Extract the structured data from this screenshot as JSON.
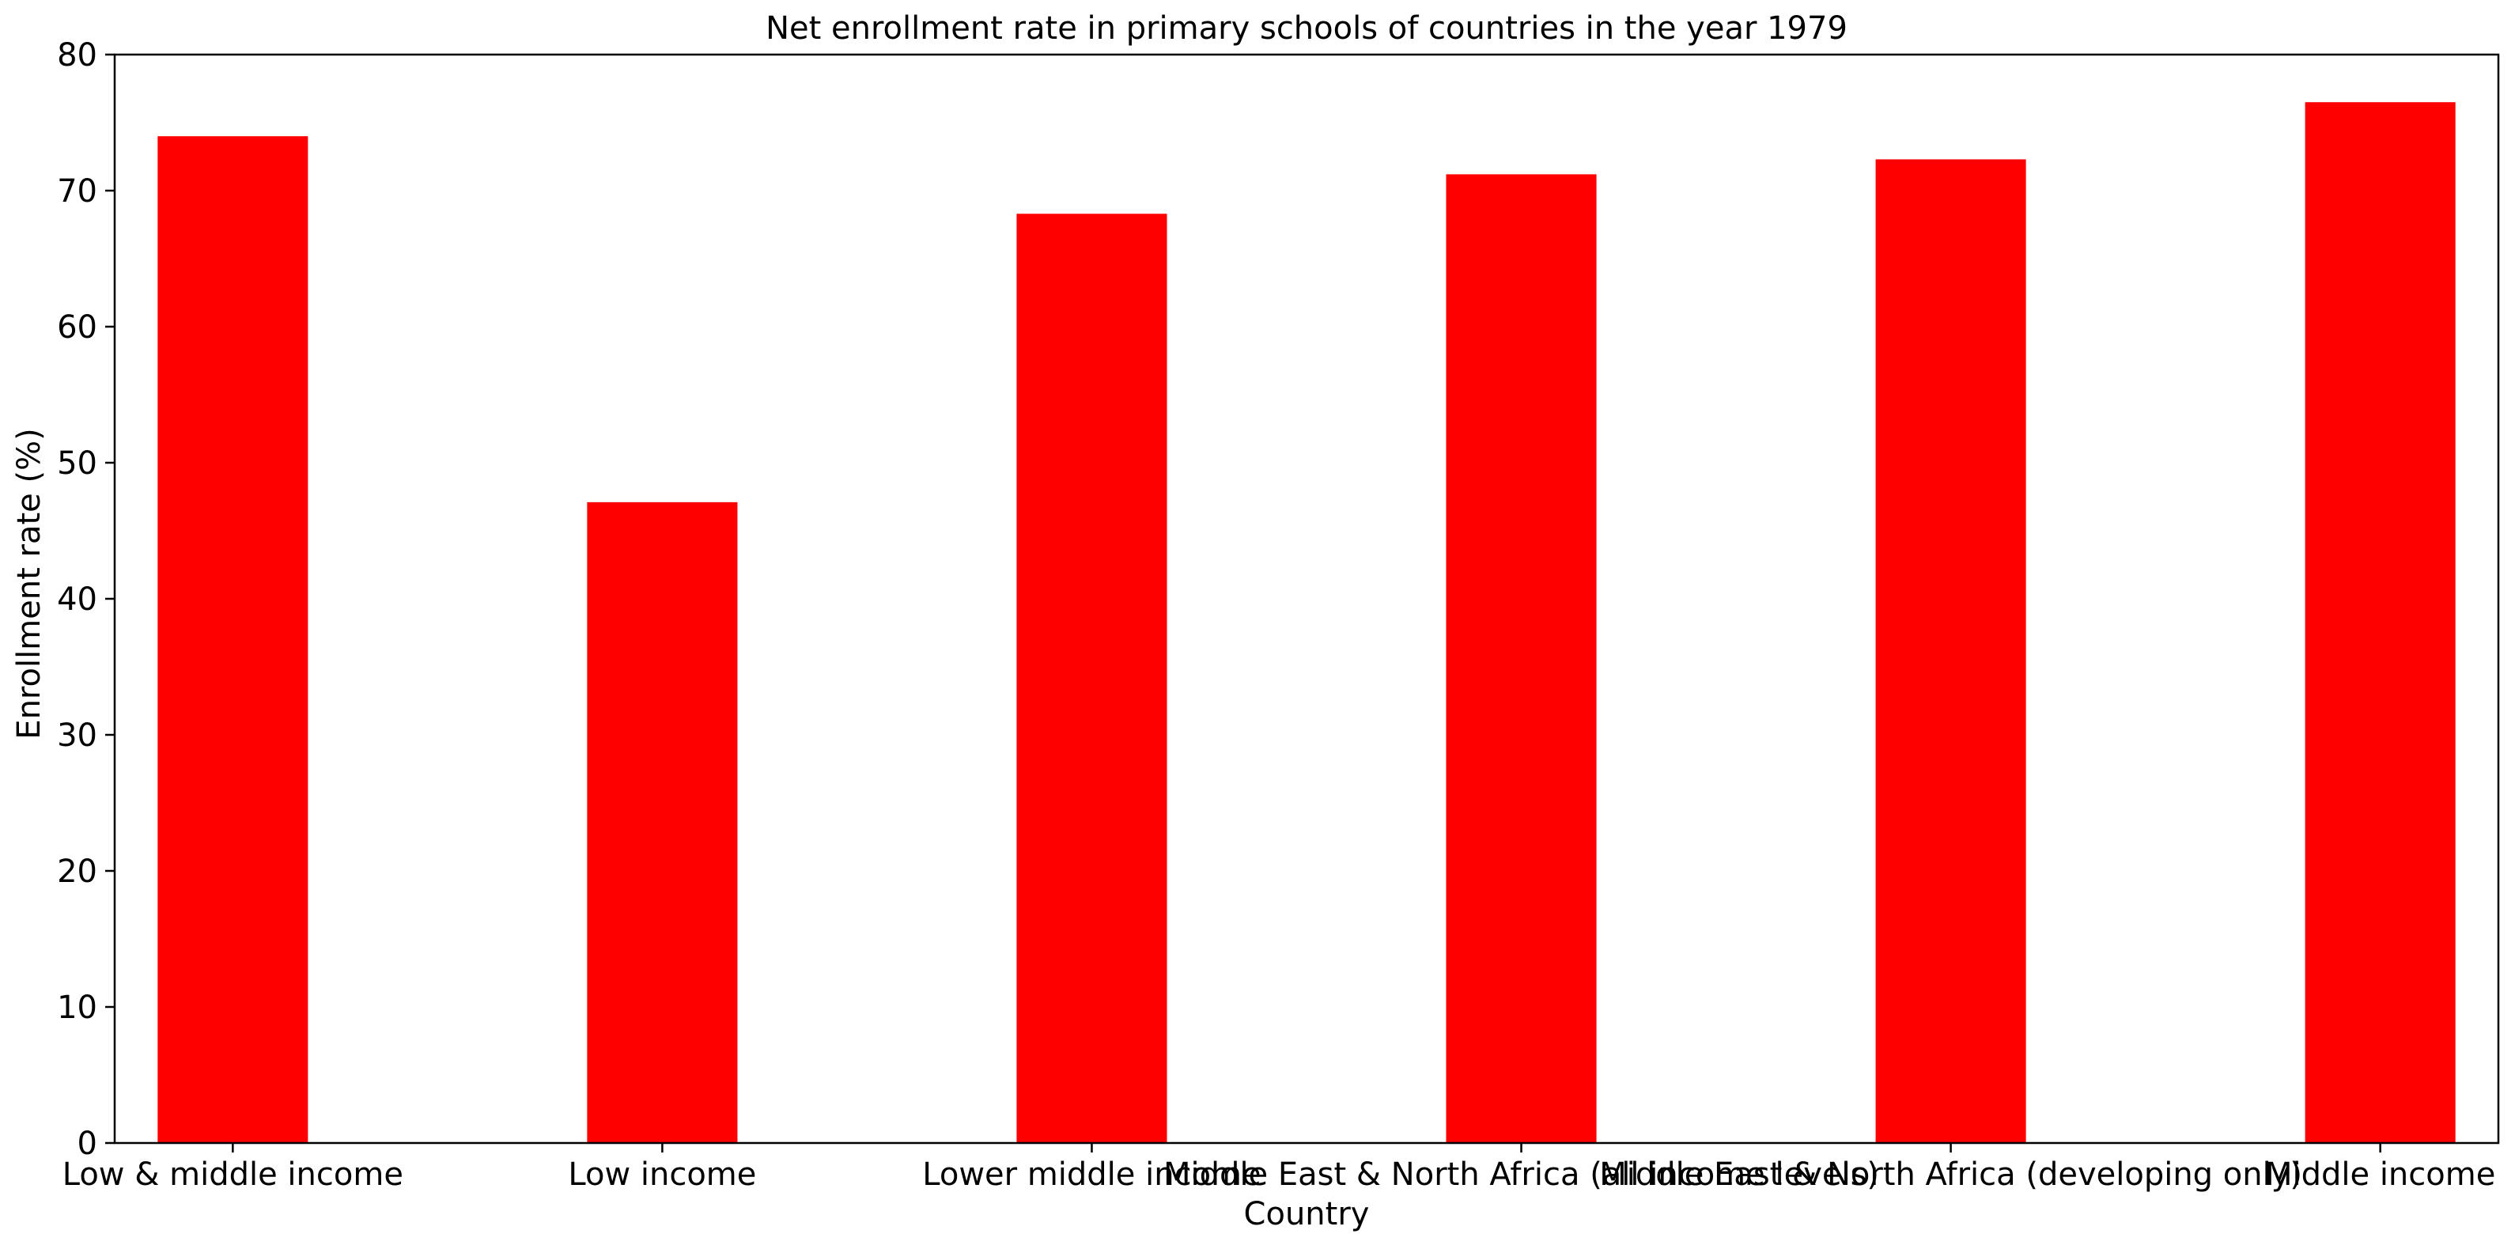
{
  "chart_data": {
    "type": "bar",
    "title": "Net enrollment rate in primary schools of countries in the year 1979",
    "xlabel": "Country",
    "ylabel": "Enrollment rate (%)",
    "categories": [
      "Low & middle income",
      "Low income",
      "Lower middle income",
      "Middle East & North Africa (all income levels)",
      "Middle East & North Africa (developing only)",
      "Middle income"
    ],
    "values": [
      74.0,
      47.1,
      68.3,
      71.2,
      72.3,
      76.5
    ],
    "ylim": [
      0,
      80
    ],
    "yticks": [
      0,
      10,
      20,
      30,
      40,
      50,
      60,
      70,
      80
    ],
    "bar_color": "#ff0000",
    "grid": false,
    "legend": "none"
  }
}
